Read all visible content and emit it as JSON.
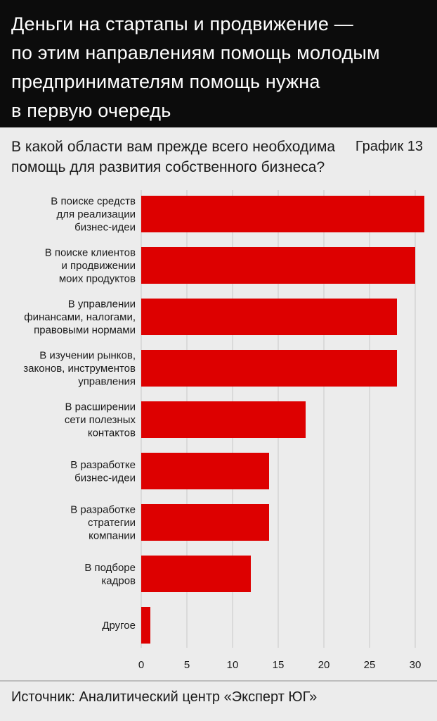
{
  "header": {
    "title": "Деньги на стартапы и продвижение —\nпо этим направлениям помощь молодым\nпредпринимателям помощь нужна\nв первую очередь"
  },
  "question": "В какой области вам прежде всего необходима\nпомощь для развития собственного бизнеса?",
  "chart_number": "График 13",
  "source": "Источник: Аналитический центр «Эксперт ЮГ»",
  "colors": {
    "bar": "#dd0000",
    "header_bg": "#0c0c0c",
    "background": "#ececec",
    "grid": "#c8c8c8"
  },
  "chart_data": {
    "type": "bar",
    "orientation": "horizontal",
    "title": "",
    "xlabel": "",
    "ylabel": "",
    "xlim": [
      0,
      31
    ],
    "ticks": [
      "0",
      "5",
      "10",
      "15",
      "20",
      "25",
      "30"
    ],
    "grid": true,
    "categories": [
      [
        "В поиске средств",
        "для реализации",
        "бизнес-идеи"
      ],
      [
        "В поиске клиентов",
        "и продвижении",
        "моих продуктов"
      ],
      [
        "В управлении",
        "финансами, налогами,",
        "правовыми нормами"
      ],
      [
        "В изучении рынков,",
        "законов, инструментов",
        "управления"
      ],
      [
        "В расширении",
        "сети полезных",
        "контактов"
      ],
      [
        "В разработке",
        "бизнес-идеи"
      ],
      [
        "В разработке",
        "стратегии",
        "компании"
      ],
      [
        "В подборе",
        "кадров"
      ],
      [
        "Другое"
      ]
    ],
    "values": [
      31,
      30,
      28,
      28,
      18,
      14,
      14,
      12,
      1
    ]
  }
}
